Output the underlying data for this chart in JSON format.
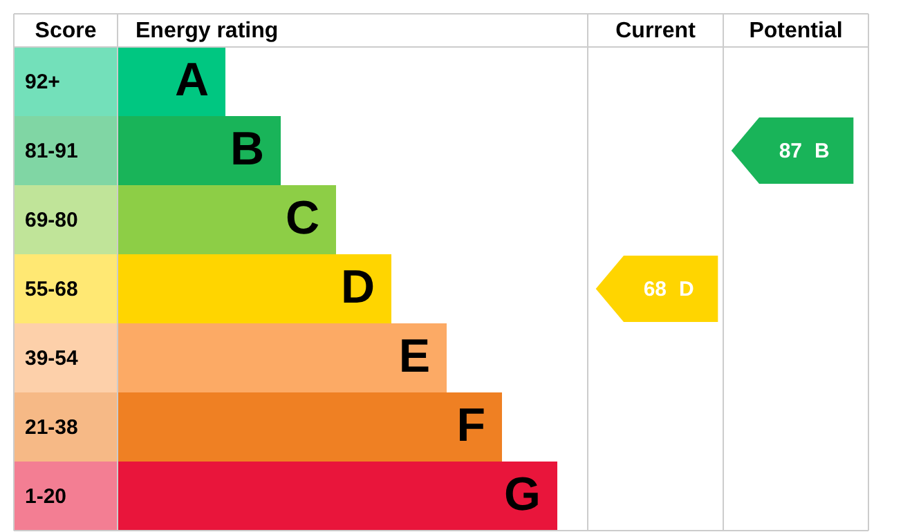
{
  "chart_data": {
    "type": "other",
    "ylabel": "Score",
    "xlabel": "Energy rating",
    "categories": [
      "A",
      "B",
      "C",
      "D",
      "E",
      "F",
      "G"
    ],
    "y2_categories": [
      "92+",
      "81-91",
      "69-80",
      "55-68",
      "39-54",
      "21-38",
      "1-20"
    ],
    "colors": [
      "#00c781",
      "#19b459",
      "#8dce46",
      "#ffd500",
      "#fcaa65",
      "#ef8023",
      "#e9153b"
    ],
    "annotations": [
      "Current",
      "Potential"
    ],
    "data_labels": true,
    "series": [
      {
        "values": [
          null,
          null,
          null,
          68,
          null,
          null,
          null
        ]
      },
      {
        "values": [
          null,
          87,
          null,
          null,
          null,
          null,
          null
        ]
      }
    ]
  }
}
